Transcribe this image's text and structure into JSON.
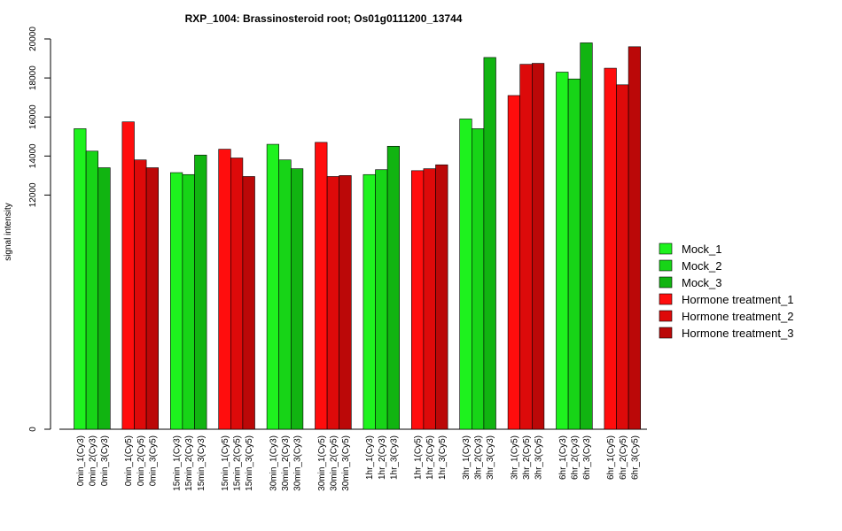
{
  "chart_data": {
    "type": "bar",
    "title": "RXP_1004: Brassinosteroid root; Os01g0111200_13744",
    "ylabel": "signal intensity",
    "xlabel": "",
    "y_ticks": [
      "0",
      "12000",
      "14000",
      "16000",
      "18000",
      "20000"
    ],
    "ylim": [
      0,
      20000
    ],
    "grid": false,
    "legend_position": "right",
    "legend": [
      {
        "name": "Mock_1",
        "color": "#1EF21E"
      },
      {
        "name": "Mock_2",
        "color": "#17D417"
      },
      {
        "name": "Mock_3",
        "color": "#11B411"
      },
      {
        "name": "Hormone treatment_1",
        "color": "#FF0D0D"
      },
      {
        "name": "Hormone treatment_2",
        "color": "#DD0A0A"
      },
      {
        "name": "Hormone treatment_3",
        "color": "#BB0808"
      }
    ],
    "groups": [
      {
        "color_set": "mock",
        "bars": [
          {
            "label": "0min_1(Cy3)",
            "value": 15400
          },
          {
            "label": "0min_2(Cy3)",
            "value": 14250
          },
          {
            "label": "0min_3(Cy3)",
            "value": 13400
          }
        ]
      },
      {
        "color_set": "hormone",
        "bars": [
          {
            "label": "0min_1(Cy5)",
            "value": 15750
          },
          {
            "label": "0min_2(Cy5)",
            "value": 13800
          },
          {
            "label": "0min_3(Cy5)",
            "value": 13400
          }
        ]
      },
      {
        "color_set": "mock",
        "bars": [
          {
            "label": "15min_1(Cy3)",
            "value": 13150
          },
          {
            "label": "15min_2(Cy3)",
            "value": 13050
          },
          {
            "label": "15min_3(Cy3)",
            "value": 14050
          }
        ]
      },
      {
        "color_set": "hormone",
        "bars": [
          {
            "label": "15min_1(Cy5)",
            "value": 14350
          },
          {
            "label": "15min_2(Cy5)",
            "value": 13900
          },
          {
            "label": "15min_3(Cy5)",
            "value": 12950
          }
        ]
      },
      {
        "color_set": "mock",
        "bars": [
          {
            "label": "30min_1(Cy3)",
            "value": 14600
          },
          {
            "label": "30min_2(Cy3)",
            "value": 13800
          },
          {
            "label": "30min_3(Cy3)",
            "value": 13350
          }
        ]
      },
      {
        "color_set": "hormone",
        "bars": [
          {
            "label": "30min_1(Cy5)",
            "value": 14700
          },
          {
            "label": "30min_2(Cy5)",
            "value": 12950
          },
          {
            "label": "30min_3(Cy5)",
            "value": 13000
          }
        ]
      },
      {
        "color_set": "mock",
        "bars": [
          {
            "label": "1hr_1(Cy3)",
            "value": 13050
          },
          {
            "label": "1hr_2(Cy3)",
            "value": 13300
          },
          {
            "label": "1hr_3(Cy3)",
            "value": 14500
          }
        ]
      },
      {
        "color_set": "hormone",
        "bars": [
          {
            "label": "1hr_1(Cy5)",
            "value": 13250
          },
          {
            "label": "1hr_2(Cy5)",
            "value": 13350
          },
          {
            "label": "1hr_3(Cy5)",
            "value": 13550
          }
        ]
      },
      {
        "color_set": "mock",
        "bars": [
          {
            "label": "3hr_1(Cy3)",
            "value": 15900
          },
          {
            "label": "3hr_2(Cy3)",
            "value": 15400
          },
          {
            "label": "3hr_3(Cy3)",
            "value": 19050
          }
        ]
      },
      {
        "color_set": "hormone",
        "bars": [
          {
            "label": "3hr_1(Cy5)",
            "value": 17100
          },
          {
            "label": "3hr_2(Cy5)",
            "value": 18700
          },
          {
            "label": "3hr_3(Cy5)",
            "value": 18750
          }
        ]
      },
      {
        "color_set": "mock",
        "bars": [
          {
            "label": "6hr_1(Cy3)",
            "value": 18300
          },
          {
            "label": "6hr_2(Cy3)",
            "value": 17950
          },
          {
            "label": "6hr_3(Cy3)",
            "value": 19800
          }
        ]
      },
      {
        "color_set": "hormone",
        "bars": [
          {
            "label": "6hr_1(Cy5)",
            "value": 18500
          },
          {
            "label": "6hr_2(Cy5)",
            "value": 17650
          },
          {
            "label": "6hr_3(Cy5)",
            "value": 19600
          }
        ]
      }
    ],
    "colors": {
      "mock": [
        "#1EF21E",
        "#17D417",
        "#11B411"
      ],
      "hormone": [
        "#FF0D0D",
        "#DD0A0A",
        "#BB0808"
      ],
      "axis": "#000000"
    }
  }
}
